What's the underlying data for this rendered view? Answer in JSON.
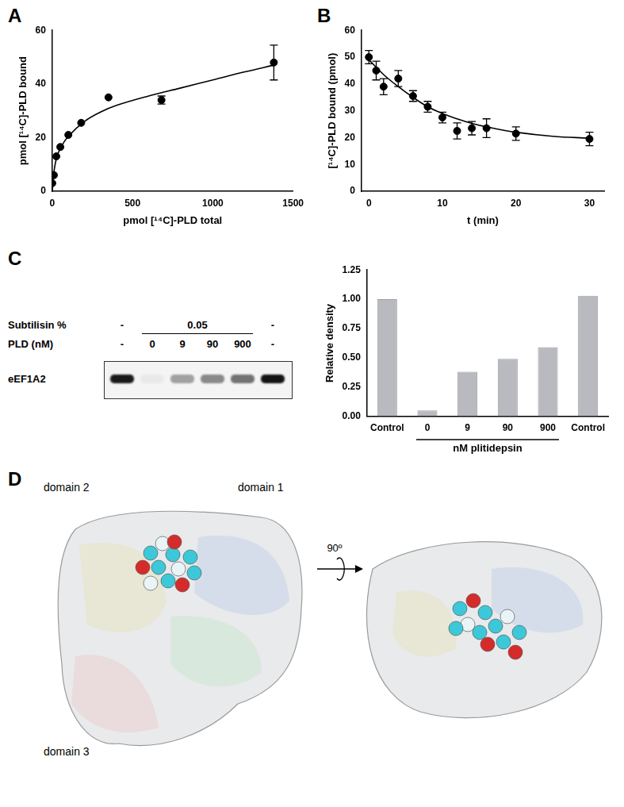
{
  "chart_data": [
    {
      "panel": "A",
      "type": "scatter",
      "x_label": "pmol [¹⁴C]-PLD total",
      "y_label": "pmol [¹⁴C]-PLD bound",
      "x": [
        0,
        10,
        25,
        50,
        100,
        180,
        350,
        680,
        1380
      ],
      "values": [
        3,
        6,
        13,
        16.5,
        21,
        25.5,
        35,
        34,
        48
      ],
      "errors": [
        null,
        null,
        null,
        null,
        null,
        null,
        null,
        1.5,
        6.5
      ],
      "curve_x": [
        0,
        10,
        25,
        50,
        100,
        200,
        300,
        400,
        600,
        800,
        1000,
        1200,
        1380
      ],
      "curve_values": [
        0,
        7,
        12,
        16,
        20.5,
        26,
        29.5,
        32,
        35.5,
        38.5,
        41.5,
        44.5,
        47
      ],
      "xlim": [
        0,
        1500
      ],
      "xticks": [
        0,
        500,
        1000,
        1500
      ],
      "ylim": [
        0,
        60
      ],
      "yticks": [
        0,
        20,
        40,
        60
      ],
      "color": "#000000",
      "marker": "circle",
      "line_style": "solid",
      "grid": false
    },
    {
      "panel": "B",
      "type": "scatter",
      "x_label": "t (min)",
      "y_label": "[¹⁴C]-PLD bound (pmol)",
      "x": [
        0,
        1,
        2,
        4,
        6,
        8,
        10,
        12,
        14,
        16,
        20,
        30
      ],
      "values": [
        50,
        45,
        39,
        42,
        35.5,
        31.5,
        27.5,
        22.5,
        23.5,
        23.5,
        21.5,
        19.5
      ],
      "errors": [
        2.5,
        3.5,
        3,
        3,
        2,
        2,
        2,
        3,
        2.5,
        3.5,
        2.5,
        2.5
      ],
      "curve_x": [
        0,
        2,
        4,
        6,
        8,
        10,
        12,
        14,
        16,
        20,
        25,
        30
      ],
      "curve_values": [
        49,
        43.5,
        39,
        35,
        31.5,
        29,
        27,
        25.3,
        24,
        22,
        20.5,
        19.8
      ],
      "xlim": [
        -1,
        32
      ],
      "xticks": [
        0,
        10,
        20,
        30
      ],
      "ylim": [
        0,
        60
      ],
      "yticks": [
        0,
        10,
        20,
        30,
        40,
        50,
        60
      ],
      "color": "#000000",
      "marker": "circle",
      "line_style": "solid",
      "grid": false
    },
    {
      "panel": "C",
      "type": "bar",
      "y_label": "Relative density",
      "x_label": "nM plitidepsin",
      "categories": [
        "Control",
        "0",
        "9",
        "90",
        "900",
        "Control"
      ],
      "values": [
        1.0,
        0.05,
        0.38,
        0.49,
        0.59,
        1.03
      ],
      "ylim": [
        0,
        1.25
      ],
      "yticks": [
        {
          "value": 0,
          "label": "0.00"
        },
        {
          "value": 0.25,
          "label": "0.25"
        },
        {
          "value": 0.5,
          "label": "0.50"
        },
        {
          "value": 0.75,
          "label": "0.75"
        },
        {
          "value": 1,
          "label": "1.00"
        },
        {
          "value": 1.25,
          "label": "1.25"
        }
      ],
      "color": "#b9babf",
      "grid": false
    }
  ],
  "blot": {
    "panel": "C",
    "rows": [
      {
        "label": "Subtilisin %",
        "groups": [
          {
            "text": "-",
            "lanes": 1
          },
          {
            "text": "0.05",
            "lanes": 4
          },
          {
            "text": "-",
            "lanes": 1
          }
        ]
      },
      {
        "label": "PLD (nM)",
        "groups": [
          {
            "text": "-",
            "lanes": 1
          },
          {
            "text": "0",
            "lanes": 1
          },
          {
            "text": "9",
            "lanes": 1
          },
          {
            "text": "90",
            "lanes": 1
          },
          {
            "text": "900",
            "lanes": 1
          },
          {
            "text": "-",
            "lanes": 1
          }
        ]
      }
    ],
    "band_label": "eEF1A2"
  },
  "structure": {
    "panel": "D",
    "domain_labels": [
      "domain 2",
      "domain 1",
      "domain 3"
    ],
    "rotation": "90º"
  }
}
